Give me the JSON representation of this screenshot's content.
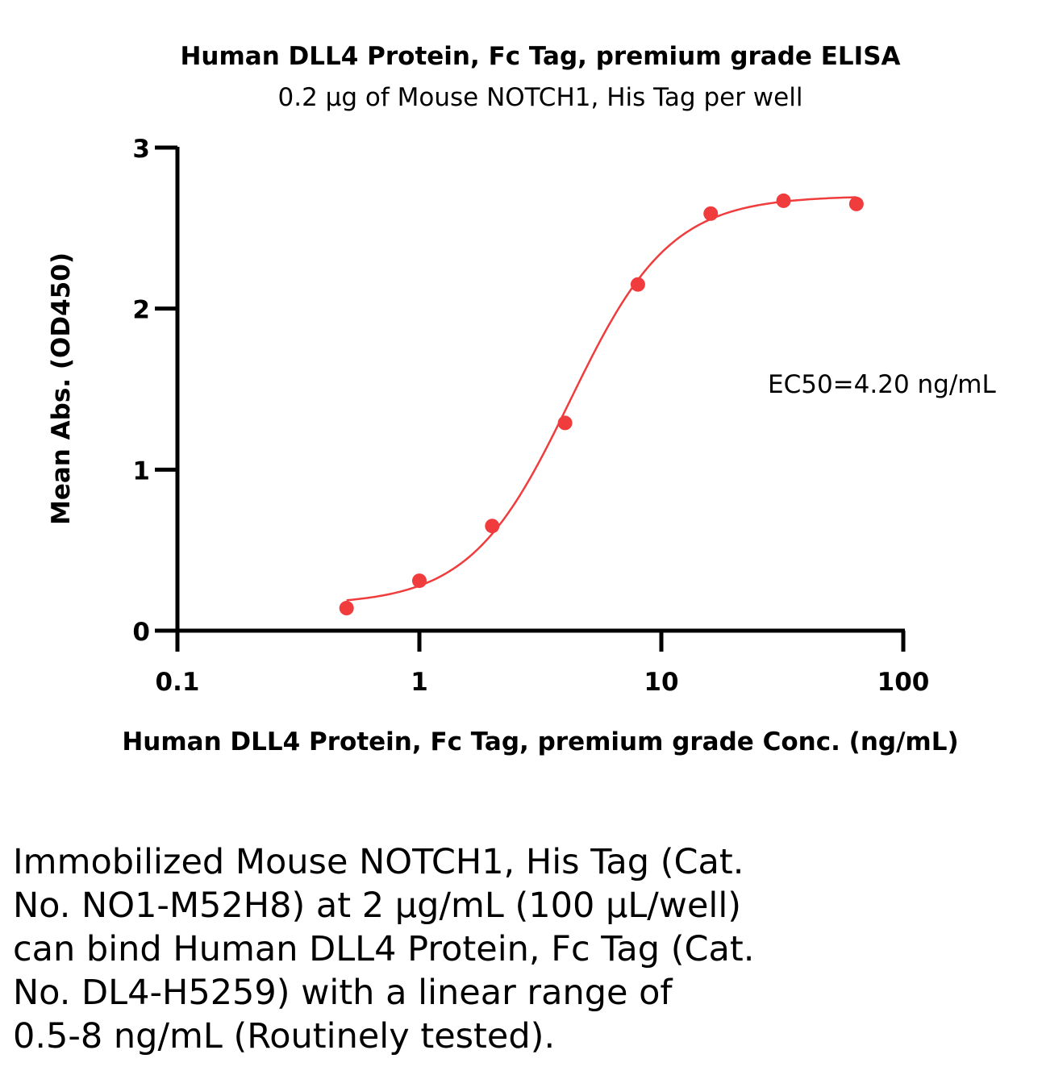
{
  "chart_data": {
    "type": "scatter",
    "title": "Human DLL4 Protein, Fc Tag, premium grade ELISA",
    "subtitle": "0.2 µg of Mouse NOTCH1, His Tag per well",
    "xlabel": "Human DLL4 Protein, Fc Tag, premium grade Conc. (ng/mL)",
    "ylabel": "Mean Abs. (OD450)",
    "x_scale": "log",
    "xlim": [
      0.1,
      100
    ],
    "ylim": [
      0,
      3
    ],
    "x_ticks": [
      "0.1",
      "1",
      "10",
      "100"
    ],
    "y_ticks": [
      "0",
      "1",
      "2",
      "3"
    ],
    "grid": false,
    "color": "#f03c3c",
    "series": [
      {
        "x": [
          0.5,
          1,
          2,
          4,
          8,
          16,
          32,
          64
        ],
        "y": [
          0.14,
          0.31,
          0.65,
          1.29,
          2.15,
          2.59,
          2.67,
          2.65
        ]
      }
    ],
    "fit_curve": {
      "type": "4PL",
      "bottom": 0.16,
      "top": 2.7,
      "ec50": 4.2,
      "hill": 2.1,
      "x_range": [
        0.5,
        64
      ]
    },
    "annotation": "EC50=4.20 ng/mL"
  },
  "caption": [
    "Immobilized Mouse NOTCH1, His Tag (Cat.",
    "No. NO1-M52H8) at 2 µg/mL (100 µL/well)",
    "can bind Human DLL4 Protein, Fc Tag (Cat.",
    "No. DL4-H5259) with a linear range of",
    "0.5-8 ng/mL (Routinely tested)."
  ]
}
